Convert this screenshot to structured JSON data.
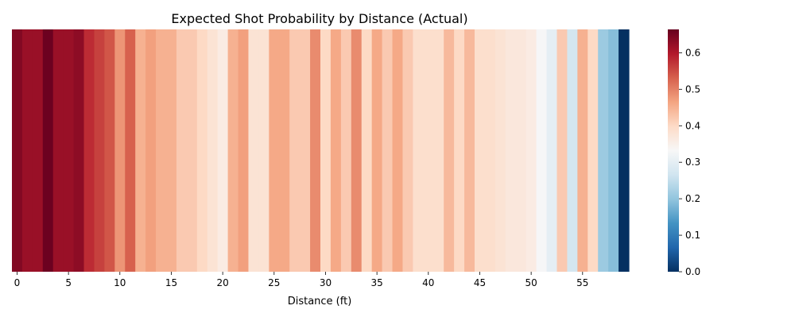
{
  "chart_data": {
    "type": "heatmap",
    "title": "Expected Shot Probability by Distance (Actual)",
    "xlabel": "Distance (ft)",
    "ylabel": "",
    "x": [
      0,
      1,
      2,
      3,
      4,
      5,
      6,
      7,
      8,
      9,
      10,
      11,
      12,
      13,
      14,
      15,
      16,
      17,
      18,
      19,
      20,
      21,
      22,
      23,
      24,
      25,
      26,
      27,
      28,
      29,
      30,
      31,
      32,
      33,
      34,
      35,
      36,
      37,
      38,
      39,
      40,
      41,
      42,
      43,
      44,
      45,
      46,
      47,
      48,
      49,
      50,
      51,
      52,
      53,
      54,
      55,
      56,
      57,
      58,
      59
    ],
    "values": [
      0.64,
      0.62,
      0.62,
      0.66,
      0.62,
      0.62,
      0.63,
      0.58,
      0.56,
      0.54,
      0.48,
      0.53,
      0.45,
      0.47,
      0.45,
      0.45,
      0.42,
      0.42,
      0.4,
      0.38,
      0.36,
      0.45,
      0.47,
      0.38,
      0.38,
      0.46,
      0.46,
      0.42,
      0.42,
      0.49,
      0.4,
      0.46,
      0.42,
      0.49,
      0.4,
      0.46,
      0.42,
      0.46,
      0.42,
      0.39,
      0.39,
      0.39,
      0.44,
      0.4,
      0.44,
      0.39,
      0.39,
      0.38,
      0.37,
      0.37,
      0.36,
      0.33,
      0.3,
      0.42,
      0.27,
      0.45,
      0.4,
      0.21,
      0.19,
      0.0
    ],
    "x_ticks": [
      0,
      5,
      10,
      15,
      20,
      25,
      30,
      35,
      40,
      45,
      50,
      55
    ],
    "colorbar": {
      "colormap": "RdBu_r",
      "vmin": 0.0,
      "vmax": 0.664,
      "ticks": [
        "0.0",
        "0.1",
        "0.2",
        "0.3",
        "0.4",
        "0.5",
        "0.6"
      ]
    }
  }
}
